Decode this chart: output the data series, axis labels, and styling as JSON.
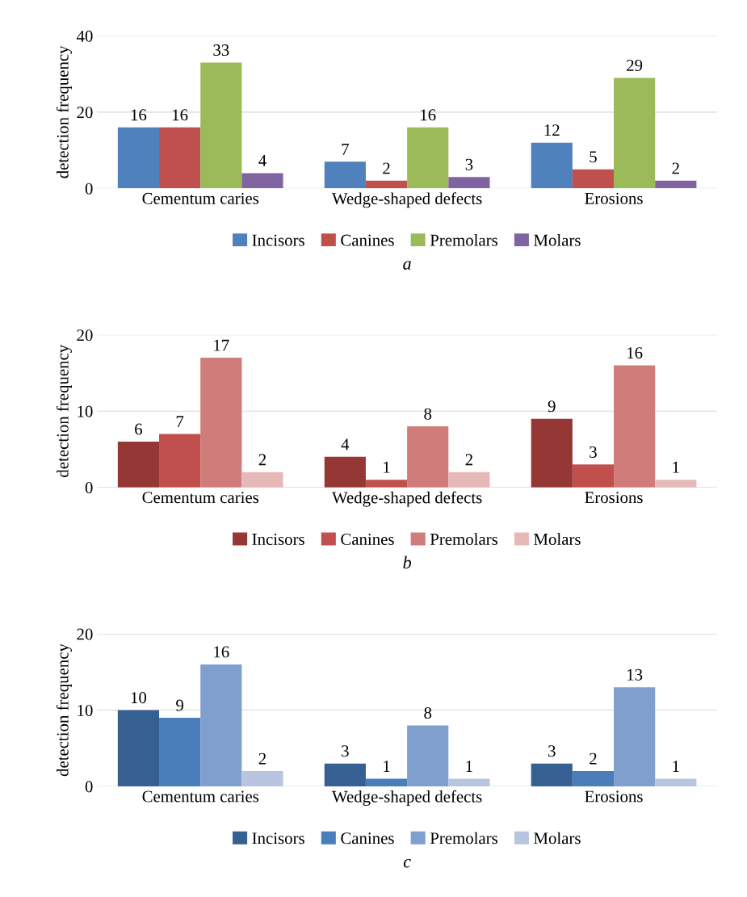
{
  "chart_data": [
    {
      "type": "bar",
      "title": "a",
      "ylabel": "detection frequency",
      "categories": [
        "Cementum caries",
        "Wedge-shaped defects",
        "Erosions"
      ],
      "ylim": [
        0,
        40
      ],
      "yticks": [
        0,
        20,
        40
      ],
      "grid": "y",
      "legend": "bottom",
      "data_labels": true,
      "series": [
        {
          "name": "Incisors",
          "color": "#4f81bd",
          "values": [
            16,
            7,
            12
          ]
        },
        {
          "name": "Canines",
          "color": "#c0504d",
          "values": [
            16,
            2,
            5
          ]
        },
        {
          "name": "Premolars",
          "color": "#9bbb59",
          "values": [
            33,
            16,
            29
          ]
        },
        {
          "name": "Molars",
          "color": "#8064a2",
          "values": [
            4,
            3,
            2
          ]
        }
      ]
    },
    {
      "type": "bar",
      "title": "b",
      "ylabel": "detection frequency",
      "categories": [
        "Cementum caries",
        "Wedge-shaped defects",
        "Erosions"
      ],
      "ylim": [
        0,
        20
      ],
      "yticks": [
        0,
        10,
        20
      ],
      "grid": "y",
      "legend": "bottom",
      "data_labels": true,
      "series": [
        {
          "name": "Incisors",
          "color": "#953735",
          "values": [
            6,
            4,
            9
          ]
        },
        {
          "name": "Canines",
          "color": "#c0504d",
          "values": [
            7,
            1,
            3
          ]
        },
        {
          "name": "Premolars",
          "color": "#d07c7a",
          "values": [
            17,
            8,
            16
          ]
        },
        {
          "name": "Molars",
          "color": "#e6b9b8",
          "values": [
            2,
            2,
            1
          ]
        }
      ]
    },
    {
      "type": "bar",
      "title": "c",
      "ylabel": "detection frequency",
      "categories": [
        "Cementum caries",
        "Wedge-shaped defects",
        "Erosions"
      ],
      "ylim": [
        0,
        20
      ],
      "yticks": [
        0,
        10,
        20
      ],
      "grid": "y",
      "legend": "bottom",
      "data_labels": true,
      "series": [
        {
          "name": "Incisors",
          "color": "#376092",
          "values": [
            10,
            3,
            3
          ]
        },
        {
          "name": "Canines",
          "color": "#4a7ebb",
          "values": [
            9,
            1,
            2
          ]
        },
        {
          "name": "Premolars",
          "color": "#7f9fcf",
          "values": [
            16,
            8,
            13
          ]
        },
        {
          "name": "Molars",
          "color": "#b9c5e0",
          "values": [
            2,
            1,
            1
          ]
        }
      ]
    }
  ]
}
